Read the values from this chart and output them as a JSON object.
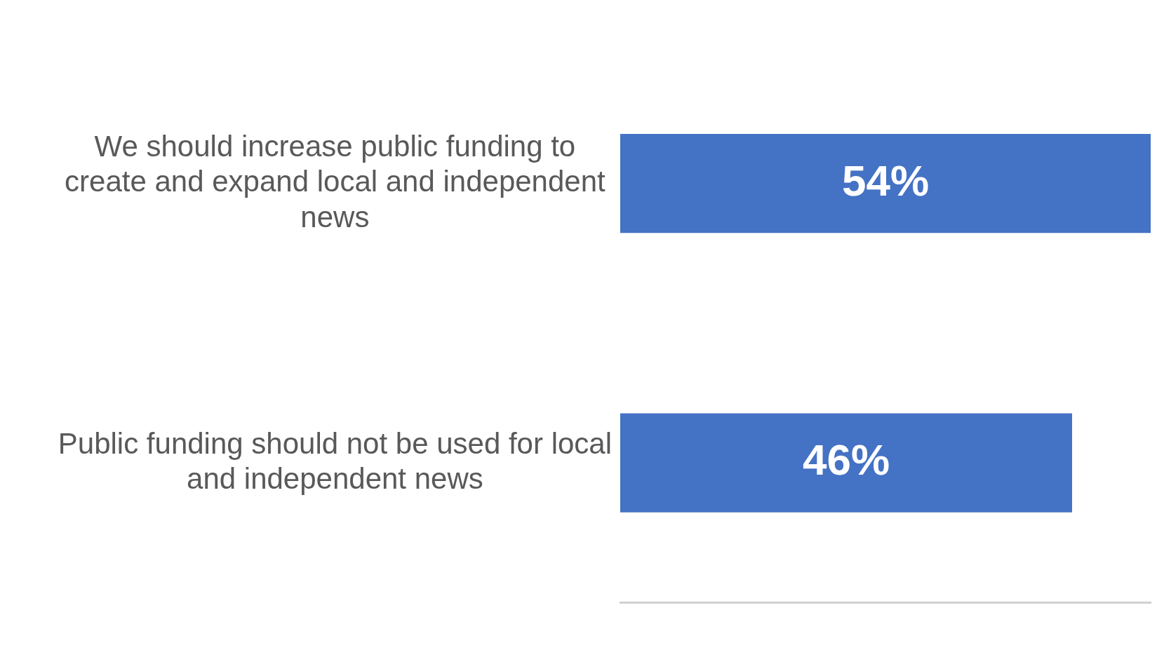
{
  "chart_data": {
    "type": "bar",
    "orientation": "horizontal",
    "categories": [
      "We should increase public funding to create and expand local and independent news",
      "Public funding should not be used for local and independent news"
    ],
    "values": [
      54,
      46
    ],
    "color": "#4472c4",
    "value_labels": [
      "54%",
      "46%"
    ],
    "grid": false,
    "legend": false
  }
}
